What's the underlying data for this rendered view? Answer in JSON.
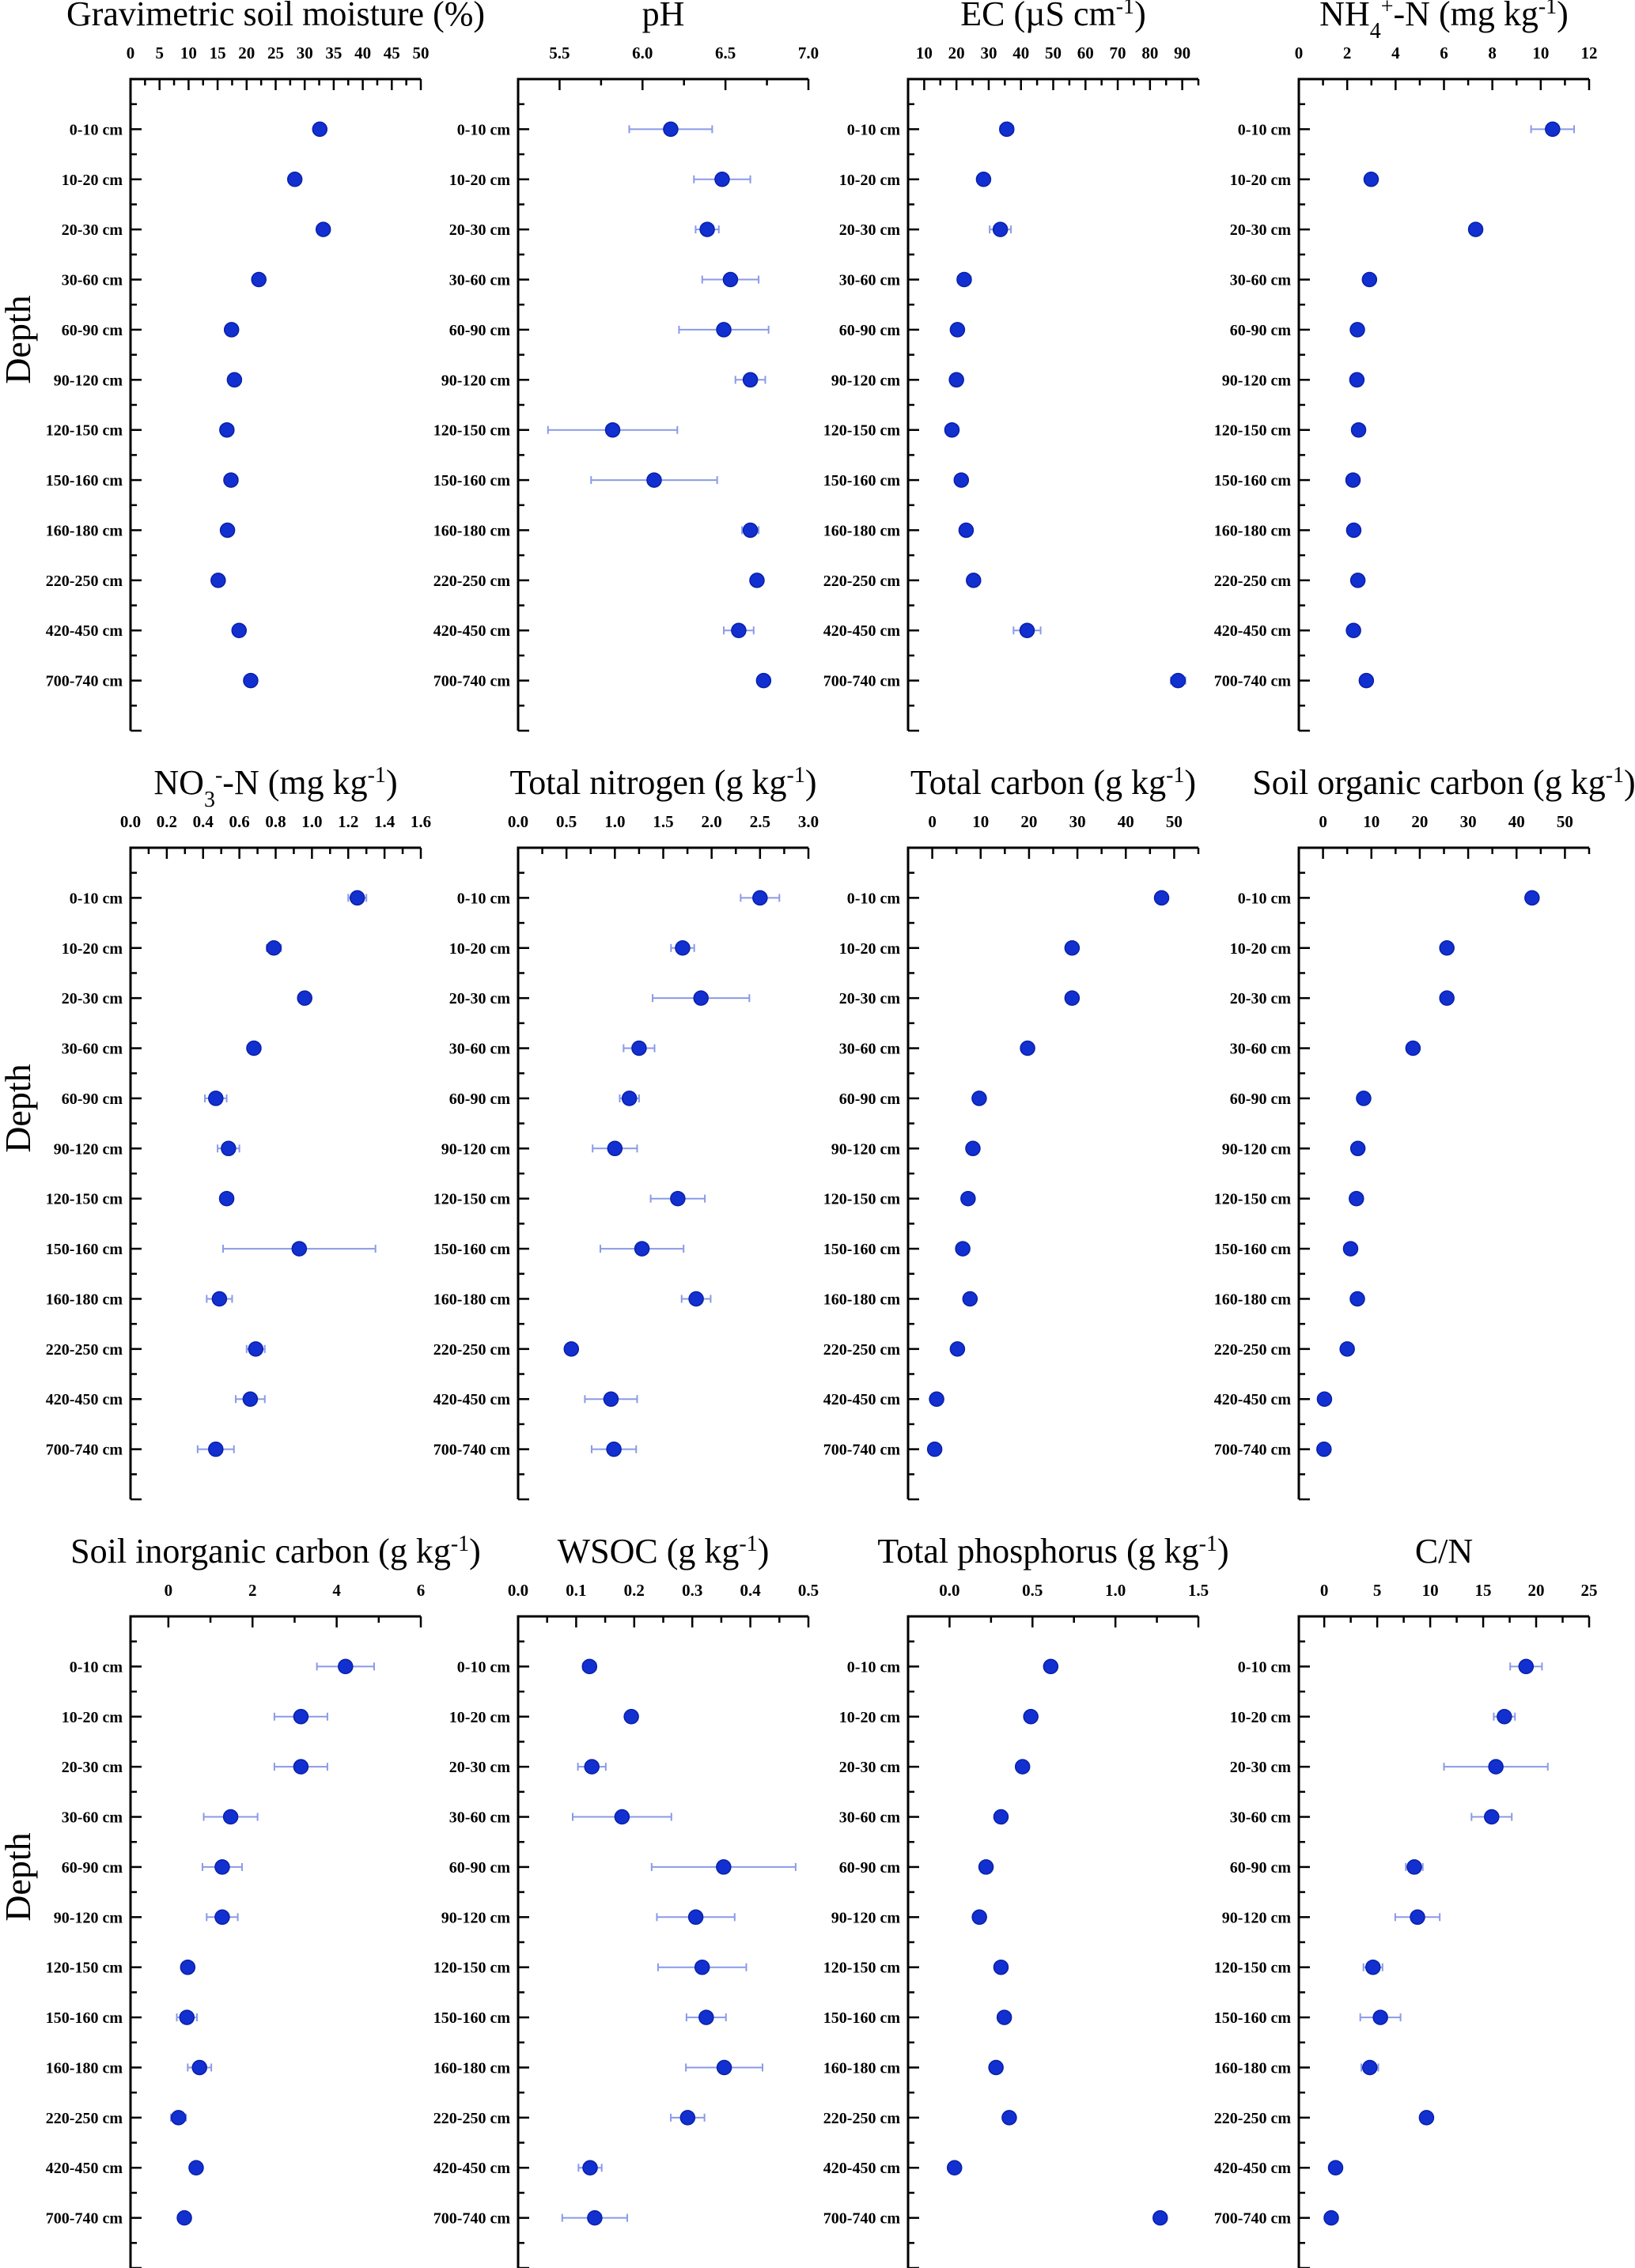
{
  "figure": {
    "ylabel": "Depth",
    "depths": [
      "0-10 cm",
      "10-20 cm",
      "20-30 cm",
      "30-60 cm",
      "60-90 cm",
      "90-120 cm",
      "120-150 cm",
      "150-160 cm",
      "160-180 cm",
      "220-250 cm",
      "420-450 cm",
      "700-740 cm"
    ]
  },
  "colors": {
    "marker": "#1230d0",
    "error_bar": "#8a9ae8",
    "axis": "#000000"
  },
  "chart_data": [
    {
      "type": "scatter",
      "title": "Gravimetric soil moisture (%)",
      "title_parts": [
        {
          "t": "Gravimetric soil moisture (%)"
        }
      ],
      "xlabel": "",
      "ylabel": "Depth",
      "xlim": [
        0,
        50
      ],
      "xticks": [
        0,
        5,
        10,
        15,
        20,
        25,
        30,
        35,
        40,
        45,
        50
      ],
      "tick_labels": [
        "0",
        "5",
        "10",
        "15",
        "20",
        "25",
        "30",
        "35",
        "40",
        "45",
        "50"
      ],
      "values": [
        32.6,
        28.3,
        33.2,
        22.1,
        17.4,
        17.9,
        16.6,
        17.3,
        16.7,
        15.1,
        18.7,
        20.7
      ],
      "errors": [
        0,
        0,
        0,
        0,
        0,
        0,
        0,
        0,
        0,
        0,
        0,
        0
      ]
    },
    {
      "type": "scatter",
      "title": "pH",
      "title_parts": [
        {
          "t": "pH"
        }
      ],
      "xlabel": "",
      "ylabel": "",
      "xlim": [
        5.25,
        7.0
      ],
      "xticks": [
        5.5,
        6.0,
        6.5,
        7.0
      ],
      "tick_labels": [
        "5.5",
        "6.0",
        "6.5",
        "7.0"
      ],
      "values": [
        6.17,
        6.48,
        6.39,
        6.53,
        6.49,
        6.65,
        5.82,
        6.07,
        6.65,
        6.69,
        6.58,
        6.73
      ],
      "errors": [
        0.25,
        0.17,
        0.07,
        0.17,
        0.27,
        0.09,
        0.39,
        0.38,
        0.05,
        0.01,
        0.09,
        0
      ]
    },
    {
      "type": "scatter",
      "title": "EC (µS cm-1)",
      "title_parts": [
        {
          "t": "EC (µS cm"
        },
        {
          "t": "-1",
          "sup": true
        },
        {
          "t": ")"
        }
      ],
      "xlabel": "",
      "ylabel": "",
      "xlim": [
        5,
        95
      ],
      "xticks": [
        10,
        20,
        30,
        40,
        50,
        60,
        70,
        80,
        90
      ],
      "tick_labels": [
        "10",
        "20",
        "30",
        "40",
        "50",
        "60",
        "70",
        "80",
        "90"
      ],
      "values": [
        35.6,
        28.4,
        33.6,
        22.4,
        20.3,
        20.0,
        18.6,
        21.5,
        23.0,
        25.3,
        41.9,
        88.7
      ],
      "errors": [
        2.0,
        1.0,
        3.3,
        2.0,
        1.0,
        1.0,
        0.5,
        1.0,
        1.0,
        1.0,
        4.2,
        2.3
      ]
    },
    {
      "type": "scatter",
      "title": "NH4+-N (mg kg-1)",
      "title_parts": [
        {
          "t": "NH"
        },
        {
          "t": "4",
          "sub": true
        },
        {
          "t": "+",
          "sup": true
        },
        {
          "t": "-N (mg kg"
        },
        {
          "t": "-1",
          "sup": true
        },
        {
          "t": ")"
        }
      ],
      "xlabel": "",
      "ylabel": "",
      "xlim": [
        0,
        12
      ],
      "xticks": [
        0,
        2,
        4,
        6,
        8,
        10,
        12
      ],
      "tick_labels": [
        "0",
        "2",
        "4",
        "6",
        "8",
        "10",
        "12"
      ],
      "values": [
        10.49,
        2.99,
        7.31,
        2.92,
        2.42,
        2.4,
        2.47,
        2.24,
        2.27,
        2.44,
        2.26,
        2.79
      ],
      "errors": [
        0.89,
        0.1,
        0.2,
        0.1,
        0.1,
        0.1,
        0.1,
        0.2,
        0.1,
        0.1,
        0.1,
        0.22
      ]
    },
    {
      "type": "scatter",
      "title": "NO3--N (mg kg-1)",
      "title_parts": [
        {
          "t": "NO"
        },
        {
          "t": "3",
          "sub": true
        },
        {
          "t": "-",
          "sup": true
        },
        {
          "t": "-N (mg kg"
        },
        {
          "t": "-1",
          "sup": true
        },
        {
          "t": ")"
        }
      ],
      "xlabel": "",
      "ylabel": "Depth",
      "xlim": [
        0,
        1.6
      ],
      "xticks": [
        0,
        0.2,
        0.4,
        0.6,
        0.8,
        1.0,
        1.2,
        1.4,
        1.6
      ],
      "tick_labels": [
        "0.0",
        "0.2",
        "0.4",
        "0.6",
        "0.8",
        "1.0",
        "1.2",
        "1.4",
        "1.6"
      ],
      "values": [
        1.25,
        0.79,
        0.96,
        0.68,
        0.47,
        0.54,
        0.53,
        0.93,
        0.49,
        0.69,
        0.66,
        0.47
      ],
      "errors": [
        0.05,
        0.04,
        0,
        0.03,
        0.06,
        0.06,
        0.03,
        0.42,
        0.07,
        0.05,
        0.08,
        0.1
      ]
    },
    {
      "type": "scatter",
      "title": "Total nitrogen (g kg-1)",
      "title_parts": [
        {
          "t": "Total nitrogen (g kg"
        },
        {
          "t": "-1",
          "sup": true
        },
        {
          "t": ")"
        }
      ],
      "xlabel": "",
      "ylabel": "",
      "xlim": [
        0,
        3.0
      ],
      "xticks": [
        0,
        0.5,
        1.0,
        1.5,
        2.0,
        2.5,
        3.0
      ],
      "tick_labels": [
        "0.0",
        "0.5",
        "1.0",
        "1.5",
        "2.0",
        "2.5",
        "3.0"
      ],
      "values": [
        2.5,
        1.7,
        1.89,
        1.25,
        1.15,
        1.0,
        1.65,
        1.28,
        1.84,
        0.55,
        0.96,
        0.99
      ],
      "errors": [
        0.2,
        0.12,
        0.5,
        0.16,
        0.1,
        0.23,
        0.28,
        0.43,
        0.15,
        0,
        0.27,
        0.23
      ]
    },
    {
      "type": "scatter",
      "title": "Total carbon (g kg-1)",
      "title_parts": [
        {
          "t": "Total carbon (g kg"
        },
        {
          "t": "-1",
          "sup": true
        },
        {
          "t": ")"
        }
      ],
      "xlabel": "",
      "ylabel": "",
      "xlim": [
        -5,
        55
      ],
      "xticks": [
        0,
        10,
        20,
        30,
        40,
        50
      ],
      "tick_labels": [
        "0",
        "10",
        "20",
        "30",
        "40",
        "50"
      ],
      "values": [
        47.4,
        28.9,
        28.9,
        19.7,
        9.7,
        8.4,
        7.4,
        6.3,
        7.8,
        5.2,
        0.9,
        0.5
      ],
      "errors": [
        0,
        0,
        0,
        0,
        0,
        0,
        0,
        0,
        0,
        0,
        0,
        0
      ]
    },
    {
      "type": "scatter",
      "title": "Soil organic carbon (g kg-1)",
      "title_parts": [
        {
          "t": "Soil organic carbon (g kg"
        },
        {
          "t": "-1",
          "sup": true
        },
        {
          "t": ")"
        }
      ],
      "xlabel": "",
      "ylabel": "",
      "xlim": [
        -5,
        55
      ],
      "xticks": [
        0,
        10,
        20,
        30,
        40,
        50
      ],
      "tick_labels": [
        "0",
        "10",
        "20",
        "30",
        "40",
        "50"
      ],
      "values": [
        43.2,
        25.6,
        25.6,
        18.6,
        8.4,
        7.2,
        6.9,
        5.7,
        7.1,
        5.0,
        0.3,
        0.2
      ],
      "errors": [
        0,
        0,
        0,
        1.2,
        0,
        0,
        0,
        0,
        0,
        0,
        0,
        0
      ]
    },
    {
      "type": "scatter",
      "title": "Soil inorganic carbon (g kg-1)",
      "title_parts": [
        {
          "t": "Soil inorganic carbon (g kg"
        },
        {
          "t": "-1",
          "sup": true
        },
        {
          "t": ")"
        }
      ],
      "xlabel": "",
      "ylabel": "Depth",
      "xlim": [
        -0.9,
        6
      ],
      "xticks": [
        0,
        2,
        4,
        6
      ],
      "tick_labels": [
        "0",
        "2",
        "4",
        "6"
      ],
      "values": [
        4.21,
        3.15,
        3.15,
        1.48,
        1.28,
        1.28,
        0.46,
        0.44,
        0.74,
        0.24,
        0.66,
        0.38
      ],
      "errors": [
        0.68,
        0.63,
        0.63,
        0.64,
        0.47,
        0.37,
        0,
        0.24,
        0.28,
        0.18,
        0,
        0
      ]
    },
    {
      "type": "scatter",
      "title": "WSOC (g kg-1)",
      "title_parts": [
        {
          "t": "WSOC (g kg"
        },
        {
          "t": "-1",
          "sup": true
        },
        {
          "t": ")"
        }
      ],
      "xlabel": "",
      "ylabel": "",
      "xlim": [
        0,
        0.5
      ],
      "xticks": [
        0,
        0.1,
        0.2,
        0.3,
        0.4,
        0.5
      ],
      "tick_labels": [
        "0.0",
        "0.1",
        "0.2",
        "0.3",
        "0.4",
        "0.5"
      ],
      "values": [
        0.123,
        0.195,
        0.127,
        0.179,
        0.354,
        0.306,
        0.317,
        0.324,
        0.355,
        0.292,
        0.124,
        0.132
      ],
      "errors": [
        0.011,
        0,
        0.024,
        0.085,
        0.124,
        0.067,
        0.076,
        0.034,
        0.066,
        0.029,
        0.02,
        0.056
      ]
    },
    {
      "type": "scatter",
      "title": "Total phosphorus (g kg-1)",
      "title_parts": [
        {
          "t": "Total phosphorus (g kg"
        },
        {
          "t": "-1",
          "sup": true
        },
        {
          "t": ")"
        }
      ],
      "xlabel": "",
      "ylabel": "",
      "xlim": [
        -0.25,
        1.5
      ],
      "xticks": [
        0,
        0.5,
        1.0,
        1.5
      ],
      "tick_labels": [
        "0.0",
        "0.5",
        "1.0",
        "1.5"
      ],
      "values": [
        0.61,
        0.49,
        0.44,
        0.31,
        0.22,
        0.18,
        0.31,
        0.33,
        0.28,
        0.36,
        0.03,
        1.27
      ],
      "errors": [
        0,
        0,
        0,
        0,
        0,
        0,
        0,
        0,
        0,
        0,
        0,
        0
      ]
    },
    {
      "type": "scatter",
      "title": "C/N",
      "title_parts": [
        {
          "t": "C/N"
        }
      ],
      "xlabel": "",
      "ylabel": "",
      "xlim": [
        -2.4,
        25
      ],
      "xticks": [
        0,
        5,
        10,
        15,
        20,
        25
      ],
      "tick_labels": [
        "0",
        "5",
        "10",
        "15",
        "20",
        "25"
      ],
      "values": [
        19.05,
        17.0,
        16.2,
        15.8,
        8.5,
        8.8,
        4.6,
        5.3,
        4.3,
        9.65,
        1.07,
        0.66
      ],
      "errors": [
        1.5,
        1.0,
        4.9,
        1.9,
        0.8,
        2.1,
        0.9,
        1.9,
        0.8,
        0,
        0,
        0
      ]
    }
  ]
}
